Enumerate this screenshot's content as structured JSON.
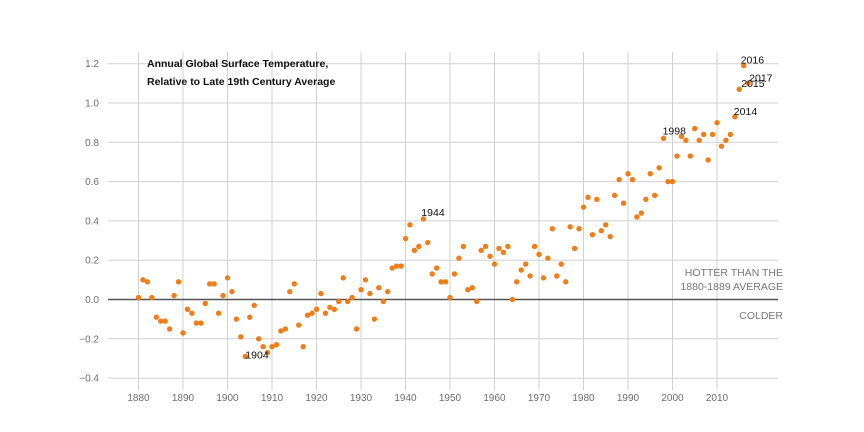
{
  "chart_data": {
    "type": "scatter",
    "title_line1": "Annual Global Surface Temperature,",
    "title_line2": "Relative to Late 19th Century Average",
    "annotation_warmer_line1": "HOTTER THAN THE",
    "annotation_warmer_line2": "1880-1889 AVERAGE",
    "annotation_colder": "COLDER",
    "point_color": "#f07d16",
    "xlim": [
      1873,
      2022
    ],
    "ylim": [
      -0.4,
      1.25
    ],
    "xticks": [
      1880,
      1890,
      1900,
      1910,
      1920,
      1930,
      1940,
      1950,
      1960,
      1970,
      1980,
      1990,
      2000,
      2010
    ],
    "yticks": [
      -0.4,
      -0.2,
      0.0,
      0.2,
      0.4,
      0.6,
      0.8,
      1.0,
      1.2
    ],
    "grid": true,
    "labeled_years": [
      {
        "year": 1904,
        "label": "1904"
      },
      {
        "year": 1944,
        "label": "1944"
      },
      {
        "year": 1998,
        "label": "1998"
      },
      {
        "year": 2014,
        "label": "2014"
      },
      {
        "year": 2015,
        "label": "2015"
      },
      {
        "year": 2016,
        "label": "2016"
      },
      {
        "year": 2017,
        "label": "2017"
      }
    ],
    "series": [
      {
        "x": [
          1880,
          1881,
          1882,
          1883,
          1884,
          1885,
          1886,
          1887,
          1888,
          1889,
          1890,
          1891,
          1892,
          1893,
          1894,
          1895,
          1896,
          1897,
          1898,
          1899,
          1900,
          1901,
          1902,
          1903,
          1904,
          1905,
          1906,
          1907,
          1908,
          1909,
          1910,
          1911,
          1912,
          1913,
          1914,
          1915,
          1916,
          1917,
          1918,
          1919,
          1920,
          1921,
          1922,
          1923,
          1924,
          1925,
          1926,
          1927,
          1928,
          1929,
          1930,
          1931,
          1932,
          1933,
          1934,
          1935,
          1936,
          1937,
          1938,
          1939,
          1940,
          1941,
          1942,
          1943,
          1944,
          1945,
          1946,
          1947,
          1948,
          1949,
          1950,
          1951,
          1952,
          1953,
          1954,
          1955,
          1956,
          1957,
          1958,
          1959,
          1960,
          1961,
          1962,
          1963,
          1964,
          1965,
          1966,
          1967,
          1968,
          1969,
          1970,
          1971,
          1972,
          1973,
          1974,
          1975,
          1976,
          1977,
          1978,
          1979,
          1980,
          1981,
          1982,
          1983,
          1984,
          1985,
          1986,
          1987,
          1988,
          1989,
          1990,
          1991,
          1992,
          1993,
          1994,
          1995,
          1996,
          1997,
          1998,
          1999,
          2000,
          2001,
          2002,
          2003,
          2004,
          2005,
          2006,
          2007,
          2008,
          2009,
          2010,
          2011,
          2012,
          2013,
          2014,
          2015,
          2016,
          2017
        ],
        "y": [
          0.01,
          0.1,
          0.09,
          0.01,
          -0.09,
          -0.11,
          -0.11,
          -0.15,
          0.02,
          0.09,
          -0.17,
          -0.05,
          -0.07,
          -0.12,
          -0.12,
          -0.02,
          0.08,
          0.08,
          -0.07,
          0.02,
          0.11,
          0.04,
          -0.1,
          -0.19,
          -0.29,
          -0.09,
          -0.03,
          -0.2,
          -0.24,
          -0.27,
          -0.24,
          -0.23,
          -0.16,
          -0.15,
          0.04,
          0.08,
          -0.13,
          -0.24,
          -0.08,
          -0.07,
          -0.05,
          0.03,
          -0.07,
          -0.04,
          -0.05,
          -0.01,
          0.11,
          -0.01,
          0.01,
          -0.15,
          0.05,
          0.1,
          0.03,
          -0.1,
          0.06,
          -0.01,
          0.04,
          0.16,
          0.17,
          0.17,
          0.31,
          0.38,
          0.25,
          0.27,
          0.41,
          0.29,
          0.13,
          0.16,
          0.09,
          0.09,
          0.01,
          0.13,
          0.21,
          0.27,
          0.05,
          0.06,
          -0.01,
          0.25,
          0.27,
          0.22,
          0.18,
          0.26,
          0.24,
          0.27,
          0.0,
          0.09,
          0.15,
          0.18,
          0.12,
          0.27,
          0.23,
          0.11,
          0.21,
          0.36,
          0.12,
          0.18,
          0.09,
          0.37,
          0.26,
          0.36,
          0.47,
          0.52,
          0.33,
          0.51,
          0.35,
          0.38,
          0.32,
          0.53,
          0.61,
          0.49,
          0.64,
          0.61,
          0.42,
          0.44,
          0.51,
          0.64,
          0.53,
          0.67,
          0.82,
          0.6,
          0.6,
          0.73,
          0.83,
          0.81,
          0.73,
          0.87,
          0.81,
          0.84,
          0.71,
          0.84,
          0.9,
          0.78,
          0.81,
          0.84,
          0.93,
          1.07,
          1.19,
          1.1
        ]
      }
    ]
  }
}
